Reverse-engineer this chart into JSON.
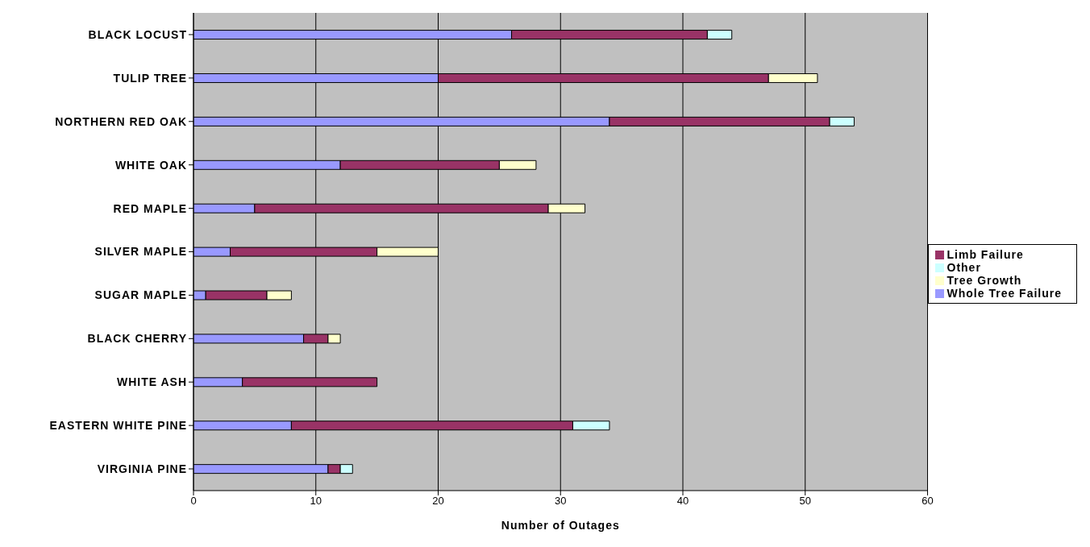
{
  "chart_data": {
    "type": "bar",
    "orientation": "horizontal",
    "stacked": true,
    "xlabel": "Number of Outages",
    "categories": [
      "BLACK LOCUST",
      "TULIP TREE",
      "NORTHERN RED OAK",
      "WHITE OAK",
      "RED MAPLE",
      "SILVER MAPLE",
      "SUGAR MAPLE",
      "BLACK CHERRY",
      "WHITE ASH",
      "EASTERN WHITE PINE",
      "VIRGINIA PINE"
    ],
    "series": [
      {
        "name": "Whole Tree Failure",
        "color": "#9999ff",
        "values": [
          26,
          20,
          34,
          12,
          5,
          3,
          1,
          9,
          4,
          8,
          11
        ]
      },
      {
        "name": "Limb Failure",
        "color": "#993366",
        "values": [
          16,
          27,
          18,
          13,
          24,
          12,
          5,
          2,
          11,
          23,
          1
        ]
      },
      {
        "name": "Tree Growth",
        "color": "#ffffcc",
        "values": [
          0,
          4,
          0,
          3,
          3,
          5,
          2,
          1,
          0,
          0,
          0
        ]
      },
      {
        "name": "Other",
        "color": "#ccffff",
        "values": [
          2,
          0,
          2,
          0,
          0,
          0,
          0,
          0,
          0,
          3,
          1
        ]
      }
    ],
    "xlim": [
      0,
      60
    ],
    "xticks": [
      0,
      10,
      20,
      30,
      40,
      50,
      60
    ],
    "grid": "x",
    "legend": "right"
  }
}
